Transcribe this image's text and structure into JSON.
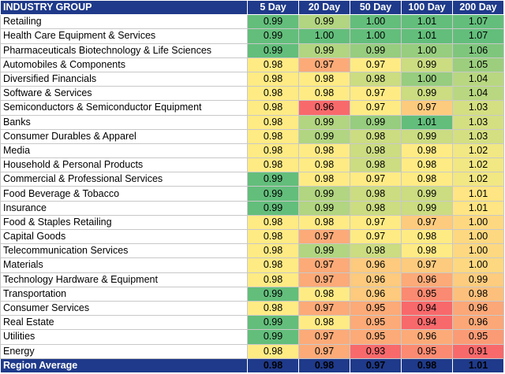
{
  "chart_data": {
    "type": "table",
    "header_label": "INDUSTRY GROUP",
    "columns": [
      "5 Day",
      "20 Day",
      "50 Day",
      "100 Day",
      "200 Day"
    ],
    "rows": [
      {
        "group": "Retailing",
        "values": [
          "0.99",
          "0.99",
          "1.00",
          "1.01",
          "1.07"
        ]
      },
      {
        "group": "Health Care Equipment & Services",
        "values": [
          "0.99",
          "1.00",
          "1.00",
          "1.01",
          "1.07"
        ]
      },
      {
        "group": "Pharmaceuticals Biotechnology & Life Sciences",
        "values": [
          "0.99",
          "0.99",
          "0.99",
          "1.00",
          "1.06"
        ]
      },
      {
        "group": "Automobiles & Components",
        "values": [
          "0.98",
          "0.97",
          "0.97",
          "0.99",
          "1.05"
        ]
      },
      {
        "group": "Diversified Financials",
        "values": [
          "0.98",
          "0.98",
          "0.98",
          "1.00",
          "1.04"
        ]
      },
      {
        "group": "Software & Services",
        "values": [
          "0.98",
          "0.98",
          "0.97",
          "0.99",
          "1.04"
        ]
      },
      {
        "group": "Semiconductors & Semiconductor Equipment",
        "values": [
          "0.98",
          "0.96",
          "0.97",
          "0.97",
          "1.03"
        ]
      },
      {
        "group": "Banks",
        "values": [
          "0.98",
          "0.99",
          "0.99",
          "1.01",
          "1.03"
        ]
      },
      {
        "group": "Consumer Durables & Apparel",
        "values": [
          "0.98",
          "0.99",
          "0.98",
          "0.99",
          "1.03"
        ]
      },
      {
        "group": "Media",
        "values": [
          "0.98",
          "0.98",
          "0.98",
          "0.98",
          "1.02"
        ]
      },
      {
        "group": "Household & Personal Products",
        "values": [
          "0.98",
          "0.98",
          "0.98",
          "0.98",
          "1.02"
        ]
      },
      {
        "group": "Commercial & Professional Services",
        "values": [
          "0.99",
          "0.98",
          "0.97",
          "0.98",
          "1.02"
        ]
      },
      {
        "group": "Food Beverage & Tobacco",
        "values": [
          "0.99",
          "0.99",
          "0.98",
          "0.99",
          "1.01"
        ]
      },
      {
        "group": "Insurance",
        "values": [
          "0.99",
          "0.99",
          "0.98",
          "0.99",
          "1.01"
        ]
      },
      {
        "group": "Food & Staples Retailing",
        "values": [
          "0.98",
          "0.98",
          "0.97",
          "0.97",
          "1.00"
        ]
      },
      {
        "group": "Capital Goods",
        "values": [
          "0.98",
          "0.97",
          "0.97",
          "0.98",
          "1.00"
        ]
      },
      {
        "group": "Telecommunication Services",
        "values": [
          "0.98",
          "0.99",
          "0.98",
          "0.98",
          "1.00"
        ]
      },
      {
        "group": "Materials",
        "values": [
          "0.98",
          "0.97",
          "0.96",
          "0.97",
          "1.00"
        ]
      },
      {
        "group": "Technology Hardware & Equipment",
        "values": [
          "0.98",
          "0.97",
          "0.96",
          "0.96",
          "0.99"
        ]
      },
      {
        "group": "Transportation",
        "values": [
          "0.99",
          "0.98",
          "0.96",
          "0.95",
          "0.98"
        ]
      },
      {
        "group": "Consumer Services",
        "values": [
          "0.98",
          "0.97",
          "0.95",
          "0.94",
          "0.96"
        ]
      },
      {
        "group": "Real Estate",
        "values": [
          "0.99",
          "0.98",
          "0.95",
          "0.94",
          "0.96"
        ]
      },
      {
        "group": "Utilities",
        "values": [
          "0.99",
          "0.97",
          "0.95",
          "0.96",
          "0.95"
        ]
      },
      {
        "group": "Energy",
        "values": [
          "0.98",
          "0.97",
          "0.93",
          "0.95",
          "0.91"
        ]
      }
    ],
    "footer": {
      "label": "Region Average",
      "values": [
        "0.98",
        "0.98",
        "0.97",
        "0.98",
        "1.01"
      ]
    },
    "colors": {
      "header_bg": "#1f3a8a",
      "header_text": "#ffffff",
      "scale_low": "#f8696b",
      "scale_mid": "#ffeb84",
      "scale_high": "#63be7b"
    }
  }
}
